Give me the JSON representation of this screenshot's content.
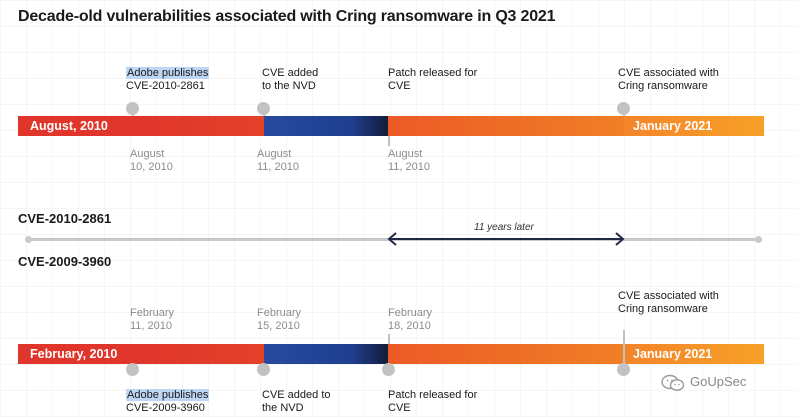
{
  "title": "Decade-old vulnerabilities associated with Cring ransomware in Q3 2021",
  "timeline_top": {
    "start_label": "August, 2010",
    "end_label": "January 2021",
    "events": [
      {
        "label_line1": "Adobe publishes",
        "label_line2": "CVE-2010-2861",
        "date_line1": "August",
        "date_line2": "10, 2010"
      },
      {
        "label_line1": "CVE added",
        "label_line2": "to the NVD",
        "date_line1": "August",
        "date_line2": "11, 2010"
      },
      {
        "label_line1": "Patch released for",
        "label_line2": "CVE",
        "date_line1": "August",
        "date_line2": "11, 2010"
      },
      {
        "label_line1": "CVE associated with",
        "label_line2": "Cring ransomware"
      }
    ]
  },
  "gap": {
    "cve_top": "CVE-2010-2861",
    "note": "11 years later",
    "cve_bottom": "CVE-2009-3960"
  },
  "timeline_bottom": {
    "start_label": "February, 2010",
    "end_label": "January 2021",
    "events": [
      {
        "label_line1": "Adobe publishes",
        "label_line2": "CVE-2009-3960",
        "date_line1": "February",
        "date_line2": "11, 2010"
      },
      {
        "label_line1": "CVE added to",
        "label_line2": "the NVD",
        "date_line1": "February",
        "date_line2": "15, 2010"
      },
      {
        "label_line1": "Patch released for",
        "label_line2": "CVE",
        "date_line1": "February",
        "date_line2": "18, 2010"
      },
      {
        "label_line1": "CVE associated with",
        "label_line2": "Cring ransomware"
      }
    ]
  },
  "watermark": {
    "text": "GoUpSec",
    "icon": "wechat-icon"
  },
  "colors": {
    "red": "#e0352b",
    "blue": "#1f3f8f",
    "navy": "#1a2244",
    "orange": "#ef6b25",
    "amber": "#f59a25",
    "gray": "#c2c2c2"
  }
}
